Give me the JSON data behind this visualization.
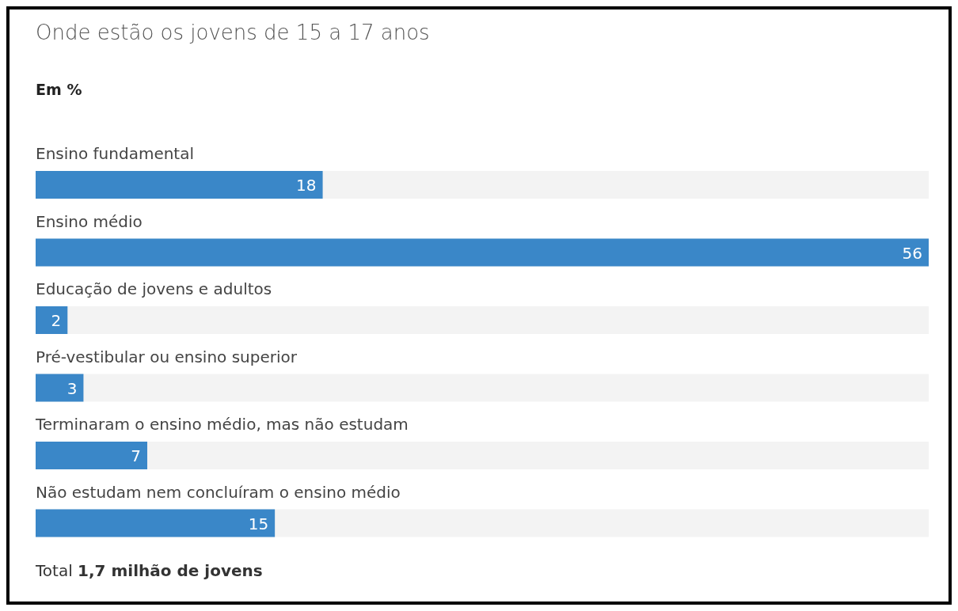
{
  "chart_data": {
    "type": "bar",
    "orientation": "horizontal",
    "title": "Onde estão os jovens de 15 a 17 anos",
    "subtitle": "Em %",
    "categories": [
      "Ensino fundamental",
      "Ensino médio",
      "Educação de jovens e adultos",
      "Pré-vestibular ou ensino superior",
      "Terminaram o ensino médio, mas não estudam",
      "Não estudam nem concluíram o ensino médio"
    ],
    "values": [
      18,
      56,
      2,
      3,
      7,
      15
    ],
    "color": "#3a87c8",
    "data_labels": true,
    "annotations": [
      "Total 1,7 milhão de jovens"
    ]
  }
}
